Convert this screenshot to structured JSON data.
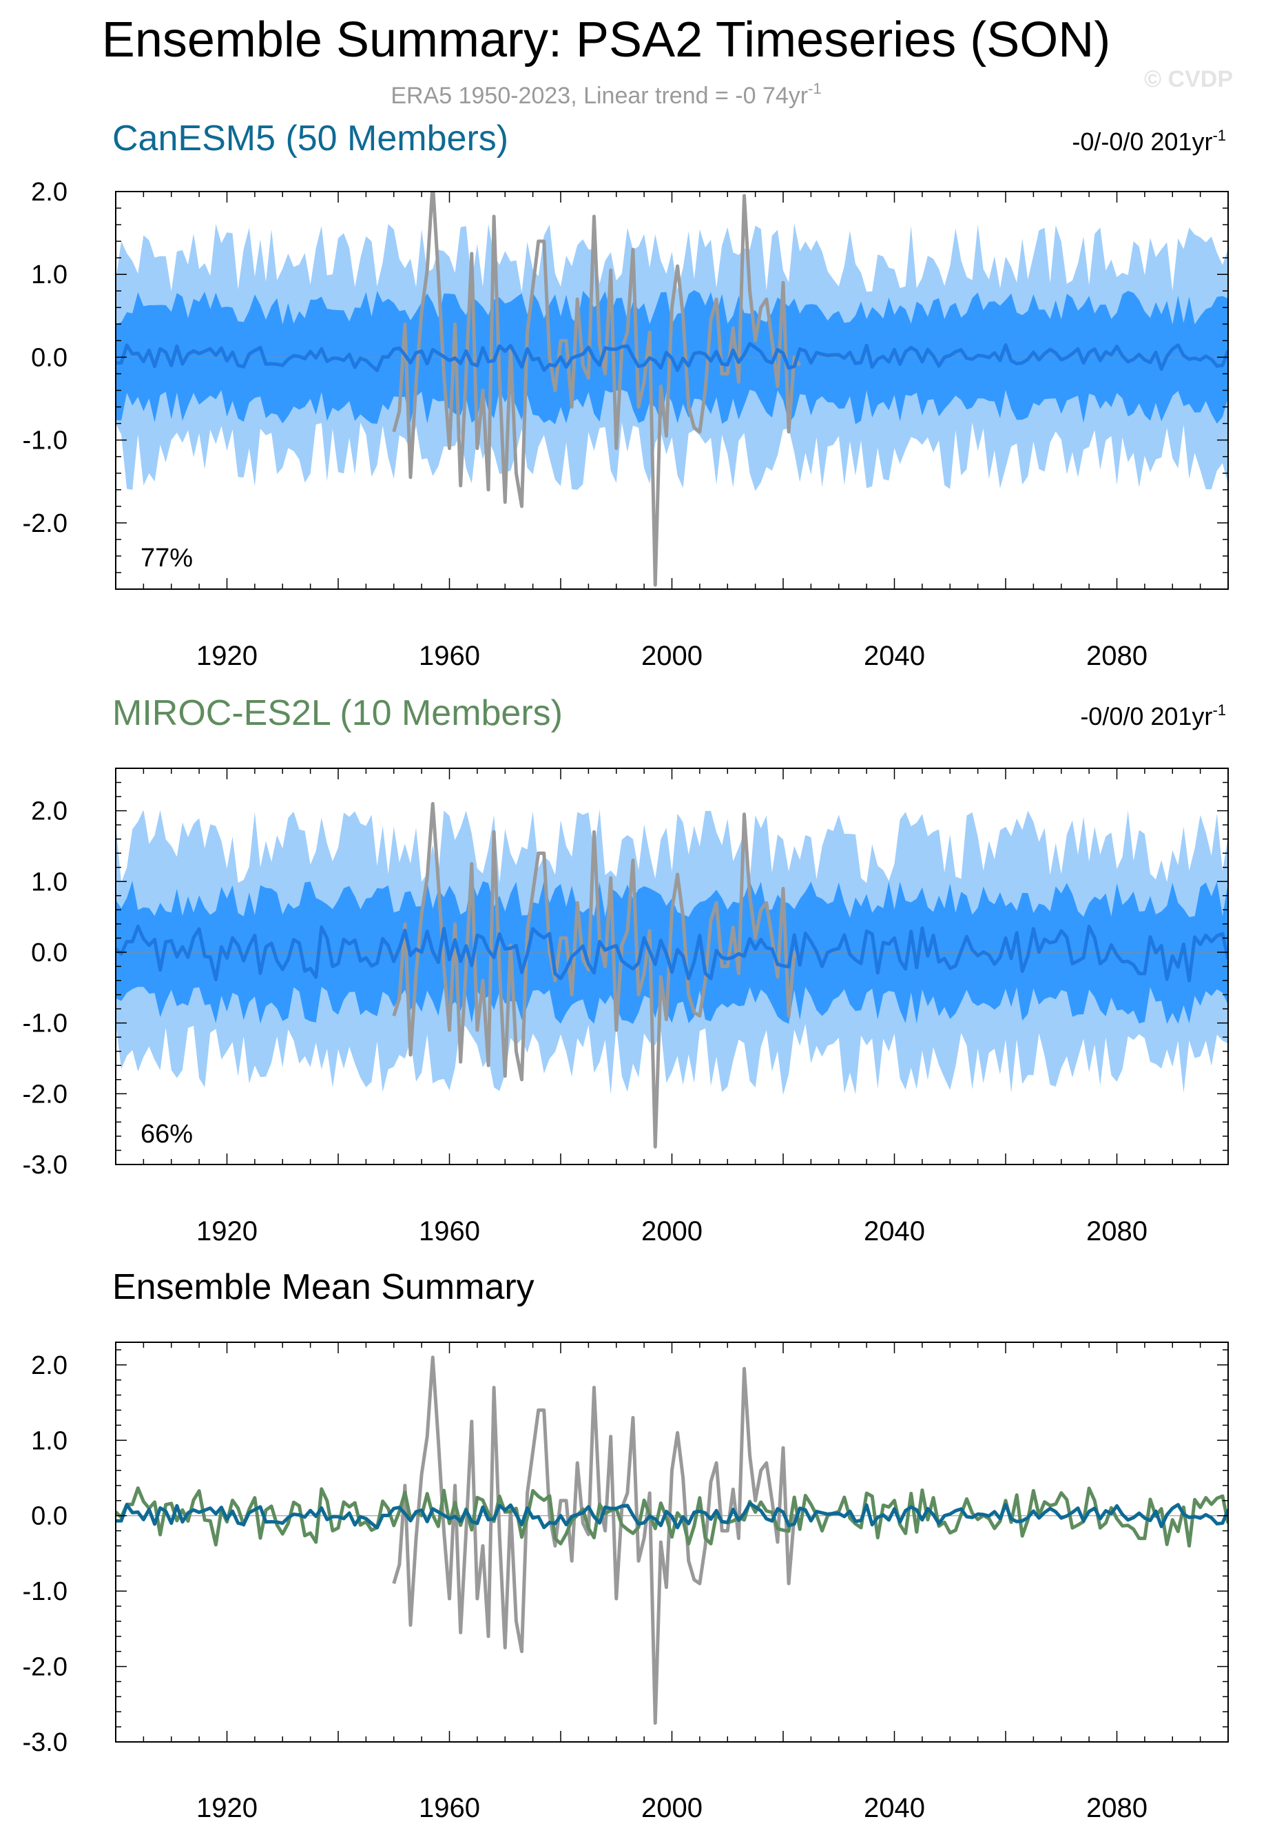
{
  "figure": {
    "title": "Ensemble Summary: PSA2 Timeseries (SON)",
    "subtitle": "ERA5 1950-2023, Linear trend = -0 74yr",
    "subtitle_sup": "-1",
    "watermark": "© CVDP"
  },
  "colors": {
    "outer_band": "#9fcefb",
    "inner_band": "#3399ff",
    "ensemble_mean_line": "#1f78e0",
    "observations": "#999999",
    "canesm5": "#0e6a94",
    "miroc": "#5e8c5e",
    "axis": "#000000"
  },
  "chart_data": [
    {
      "type": "area",
      "panel": "CanESM5",
      "title": "CanESM5 (50 Members)",
      "title_color": "#0e6a94",
      "trend_label": "-0/-0/0 201yr",
      "trend_sup": "-1",
      "percent_label": "77%",
      "xlim": [
        1900,
        2100
      ],
      "ylim": [
        -2.8,
        2.0
      ],
      "x_ticks": [
        1920,
        1960,
        2000,
        2040,
        2080
      ],
      "y_ticks": [
        2.0,
        1.0,
        0.0,
        -1.0,
        -2.0
      ],
      "y_tick_labels": [
        "2.0",
        "1.0",
        "0.0",
        "-1.0",
        "-2.0"
      ],
      "grid": false,
      "series": [
        {
          "name": "",
          "kind": "band-outer",
          "lower": -1.2,
          "upper": 1.2
        },
        {
          "name": "",
          "kind": "band-inner",
          "lower": -0.6,
          "upper": 0.6
        },
        {
          "name": "",
          "kind": "ensemble-mean",
          "amplitude": 0.12
        },
        {
          "name": "",
          "kind": "observations",
          "x_range": [
            1950,
            2023
          ]
        }
      ]
    },
    {
      "type": "area",
      "panel": "MIROC-ES2L",
      "title": "MIROC-ES2L (10 Members)",
      "title_color": "#5e8c5e",
      "trend_label": "-0/0/0 201yr",
      "trend_sup": "-1",
      "percent_label": "66%",
      "xlim": [
        1900,
        2100
      ],
      "ylim": [
        -3.0,
        2.6
      ],
      "x_ticks": [
        1920,
        1960,
        2000,
        2040,
        2080
      ],
      "y_ticks": [
        2.0,
        1.0,
        0.0,
        -1.0,
        -2.0,
        -3.0
      ],
      "y_tick_labels": [
        "2.0",
        "1.0",
        "0.0",
        "-1.0",
        "-2.0",
        "-3.0"
      ],
      "grid": false,
      "series": [
        {
          "name": "",
          "kind": "band-outer",
          "lower": -1.5,
          "upper": 1.5
        },
        {
          "name": "",
          "kind": "band-inner",
          "lower": -0.75,
          "upper": 0.75
        },
        {
          "name": "",
          "kind": "ensemble-mean",
          "amplitude": 0.3
        },
        {
          "name": "",
          "kind": "observations",
          "x_range": [
            1950,
            2023
          ]
        }
      ]
    },
    {
      "type": "line",
      "panel": "Ensemble Mean Summary",
      "title": "Ensemble Mean Summary",
      "title_color": "#000000",
      "xlim": [
        1900,
        2100
      ],
      "ylim": [
        -3.0,
        2.3
      ],
      "x_ticks": [
        1920,
        1960,
        2000,
        2040,
        2080
      ],
      "y_ticks": [
        2.0,
        1.0,
        0.0,
        -1.0,
        -2.0,
        -3.0
      ],
      "y_tick_labels": [
        "2.0",
        "1.0",
        "0.0",
        "-1.0",
        "-2.0",
        "-3.0"
      ],
      "grid": false,
      "series": [
        {
          "name": "",
          "kind": "observations",
          "x_range": [
            1950,
            2023
          ]
        },
        {
          "name": "",
          "kind": "miroc-mean",
          "amplitude": 0.3
        },
        {
          "name": "",
          "kind": "canesm-mean",
          "amplitude": 0.12
        }
      ]
    }
  ],
  "observations": {
    "years": [
      1950,
      1951,
      1952,
      1953,
      1954,
      1955,
      1956,
      1957,
      1958,
      1959,
      1960,
      1961,
      1962,
      1963,
      1964,
      1965,
      1966,
      1967,
      1968,
      1969,
      1970,
      1971,
      1972,
      1973,
      1974,
      1975,
      1976,
      1977,
      1978,
      1979,
      1980,
      1981,
      1982,
      1983,
      1984,
      1985,
      1986,
      1987,
      1988,
      1989,
      1990,
      1991,
      1992,
      1993,
      1994,
      1995,
      1996,
      1997,
      1998,
      1999,
      2000,
      2001,
      2002,
      2003,
      2004,
      2005,
      2006,
      2007,
      2008,
      2009,
      2010,
      2011,
      2012,
      2013,
      2014,
      2015,
      2016,
      2017,
      2018,
      2019,
      2020,
      2021,
      2022,
      2023
    ],
    "values": [
      -0.9,
      -0.65,
      0.4,
      -1.45,
      -0.3,
      0.55,
      1.05,
      2.1,
      1.0,
      -0.2,
      -1.1,
      0.4,
      -1.55,
      -0.2,
      1.25,
      -1.1,
      -0.4,
      -1.6,
      1.7,
      -0.25,
      -1.75,
      0.1,
      -1.4,
      -1.8,
      0.3,
      0.85,
      1.4,
      1.4,
      0.0,
      -0.4,
      0.2,
      0.2,
      -0.6,
      0.7,
      -0.1,
      -0.25,
      1.7,
      0.15,
      -0.2,
      1.05,
      -1.1,
      0.1,
      0.3,
      1.3,
      -0.6,
      -0.3,
      0.3,
      -2.75,
      -0.35,
      -0.95,
      0.6,
      1.1,
      0.5,
      -0.6,
      -0.85,
      -0.9,
      -0.4,
      0.45,
      0.7,
      -0.2,
      -0.2,
      0.35,
      -0.3,
      1.95,
      0.8,
      0.2,
      0.6,
      0.7,
      0.2,
      -0.35,
      0.9,
      -0.9,
      0.0,
      -0.1
    ]
  }
}
